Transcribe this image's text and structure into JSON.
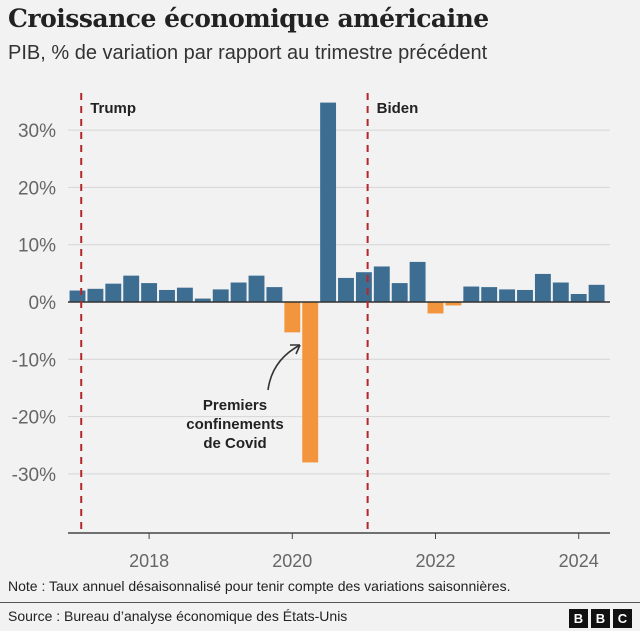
{
  "chart_data": {
    "type": "bar",
    "title": "Croissance économique américaine",
    "subtitle": "PIB, % de variation par rapport au trimestre précédent",
    "x": [
      "2017 T1",
      "2017 T2",
      "2017 T3",
      "2017 T4",
      "2018 T1",
      "2018 T2",
      "2018 T3",
      "2018 T4",
      "2019 T1",
      "2019 T2",
      "2019 T3",
      "2019 T4",
      "2020 T1",
      "2020 T2",
      "2020 T3",
      "2020 T4",
      "2021 T1",
      "2021 T2",
      "2021 T3",
      "2021 T4",
      "2022 T1",
      "2022 T2",
      "2022 T3",
      "2022 T4",
      "2023 T1",
      "2023 T2",
      "2023 T3",
      "2023 T4",
      "2024 T1",
      "2024 T2"
    ],
    "values": [
      2.0,
      2.3,
      3.2,
      4.6,
      3.3,
      2.1,
      2.5,
      0.6,
      2.2,
      3.4,
      4.6,
      2.6,
      -5.3,
      -28.0,
      34.8,
      4.2,
      5.2,
      6.2,
      3.3,
      7.0,
      -2.0,
      -0.6,
      2.7,
      2.6,
      2.2,
      2.1,
      4.9,
      3.4,
      1.4,
      3.0
    ],
    "ylim": [
      -40,
      35
    ],
    "yticks": [
      -30,
      -20,
      -10,
      0,
      10,
      20,
      30
    ],
    "ytick_labels": [
      "-30%",
      "-20%",
      "-10%",
      "0%",
      "10%",
      "20%",
      "30%"
    ],
    "xticks": [
      2018,
      2020,
      2022,
      2024
    ],
    "xtick_labels": [
      "2018",
      "2020",
      "2022",
      "2024"
    ],
    "grid": true,
    "colors": {
      "positive": "#3d6e92",
      "negative": "#f3953d",
      "marker": "#b5262b"
    },
    "markers": [
      {
        "label": "Trump",
        "date": "2017-01-20"
      },
      {
        "label": "Biden",
        "date": "2021-01-20"
      }
    ],
    "annotation": "Premiers confinements de Covid",
    "annotation_lines": [
      "Premiers",
      "confinements",
      "de Covid"
    ]
  },
  "footer": {
    "note": "Note : Taux annuel désaisonnalisé pour tenir compte des variations saisonnières.",
    "source": "Source : Bureau d’analyse économique des États-Unis",
    "logo": [
      "B",
      "B",
      "C"
    ]
  }
}
